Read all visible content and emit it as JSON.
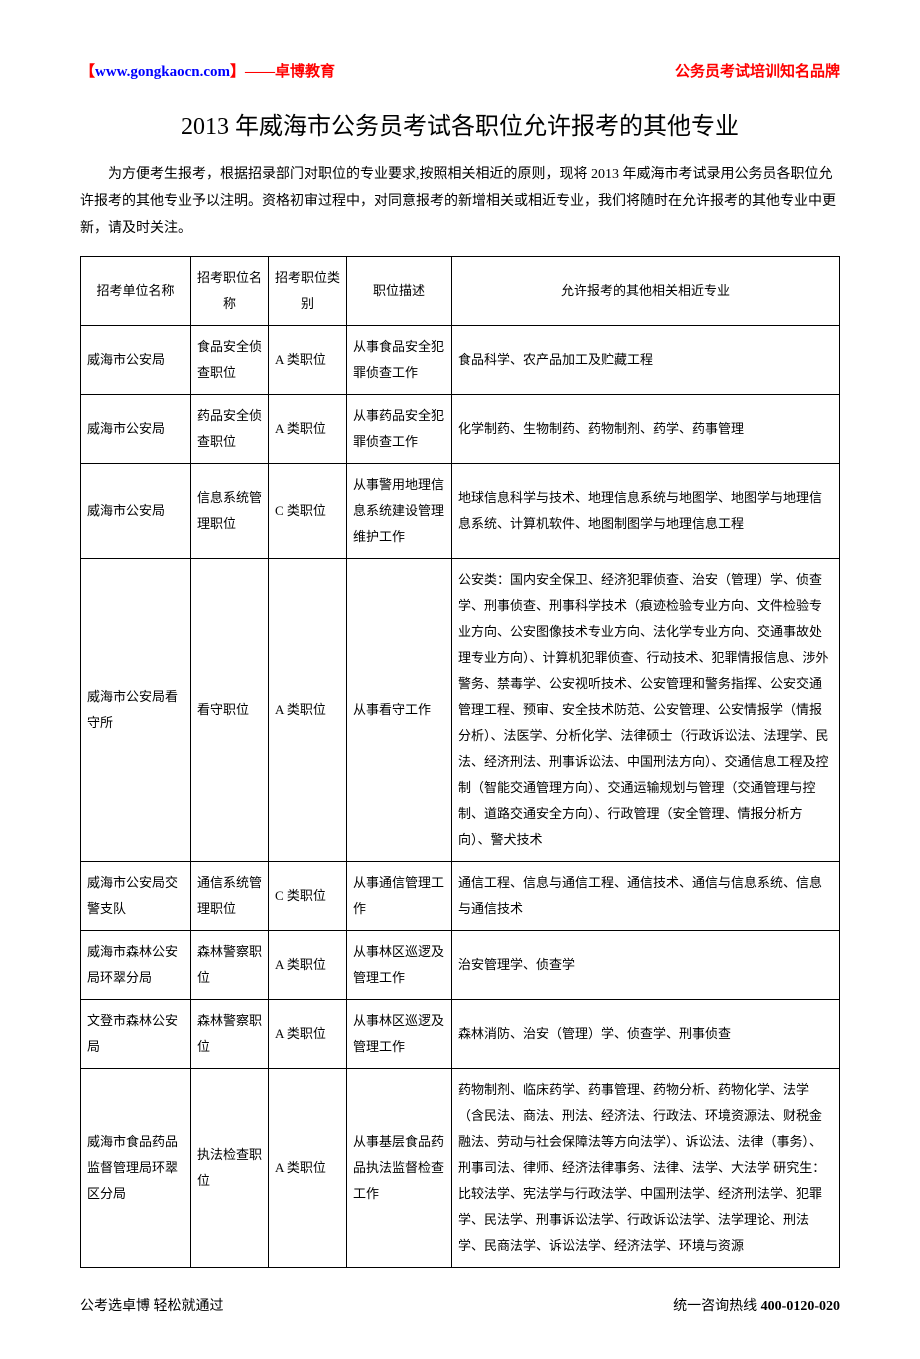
{
  "header": {
    "site_bracket_open": "【",
    "site_url": "www.gongkaocn.com",
    "site_bracket_close": "】",
    "site_suffix": "——卓博教育",
    "right_text": "公务员考试培训知名品牌"
  },
  "title": "2013 年威海市公务员考试各职位允许报考的其他专业",
  "intro": "为方便考生报考，根据招录部门对职位的专业要求,按照相关相近的原则，现将 2013 年威海市考试录用公务员各职位允许报考的其他专业予以注明。资格初审过程中，对同意报考的新增相关或相近专业，我们将随时在允许报考的其他专业中更新，请及时关注。",
  "columns": [
    "招考单位名称",
    "招考职位名称",
    "招考职位类别",
    "职位描述",
    "允许报考的其他相关相近专业"
  ],
  "rows": [
    {
      "unit": "威海市公安局",
      "position": "食品安全侦查职位",
      "category": "A 类职位",
      "desc": "从事食品安全犯罪侦查工作",
      "majors": "食品科学、农产品加工及贮藏工程"
    },
    {
      "unit": "威海市公安局",
      "position": "药品安全侦查职位",
      "category": "A 类职位",
      "desc": "从事药品安全犯罪侦查工作",
      "majors": "化学制药、生物制药、药物制剂、药学、药事管理"
    },
    {
      "unit": "威海市公安局",
      "position": "信息系统管理职位",
      "category": "C 类职位",
      "desc": "从事警用地理信息系统建设管理维护工作",
      "majors": "地球信息科学与技术、地理信息系统与地图学、地图学与地理信息系统、计算机软件、地图制图学与地理信息工程"
    },
    {
      "unit": "威海市公安局看守所",
      "position": "看守职位",
      "category": "A 类职位",
      "desc": "从事看守工作",
      "majors": "公安类：国内安全保卫、经济犯罪侦查、治安（管理）学、侦查学、刑事侦查、刑事科学技术（痕迹检验专业方向、文件检验专业方向、公安图像技术专业方向、法化学专业方向、交通事故处理专业方向）、计算机犯罪侦查、行动技术、犯罪情报信息、涉外警务、禁毒学、公安视听技术、公安管理和警务指挥、公安交通管理工程、预审、安全技术防范、公安管理、公安情报学（情报分析）、法医学、分析化学、法律硕士（行政诉讼法、法理学、民法、经济刑法、刑事诉讼法、中国刑法方向）、交通信息工程及控制（智能交通管理方向）、交通运输规划与管理（交通管理与控制、道路交通安全方向）、行政管理（安全管理、情报分析方向）、警犬技术"
    },
    {
      "unit": "威海市公安局交警支队",
      "position": "通信系统管理职位",
      "category": "C 类职位",
      "desc": "从事通信管理工作",
      "majors": "通信工程、信息与通信工程、通信技术、通信与信息系统、信息与通信技术"
    },
    {
      "unit": "威海市森林公安局环翠分局",
      "position": "森林警察职位",
      "category": "A 类职位",
      "desc": "从事林区巡逻及管理工作",
      "majors": "治安管理学、侦查学"
    },
    {
      "unit": "文登市森林公安局",
      "position": "森林警察职位",
      "category": "A 类职位",
      "desc": "从事林区巡逻及管理工作",
      "majors": "森林消防、治安（管理）学、侦查学、刑事侦查"
    },
    {
      "unit": "威海市食品药品监督管理局环翠区分局",
      "position": "执法检查职位",
      "category": "A 类职位",
      "desc": "从事基层食品药品执法监督检查工作",
      "majors": "药物制剂、临床药学、药事管理、药物分析、药物化学、法学（含民法、商法、刑法、经济法、行政法、环境资源法、财税金融法、劳动与社会保障法等方向法学）、诉讼法、法律（事务）、刑事司法、律师、经济法律事务、法律、法学、大法学 研究生：比较法学、宪法学与行政法学、中国刑法学、经济刑法学、犯罪学、民法学、刑事诉讼法学、行政诉讼法学、法学理论、刑法学、民商法学、诉讼法学、经济法学、环境与资源"
    }
  ],
  "footer": {
    "left": "公考选卓博 轻松就通过",
    "right_prefix": "统一咨询热线 ",
    "hotline": "400-0120-020"
  }
}
